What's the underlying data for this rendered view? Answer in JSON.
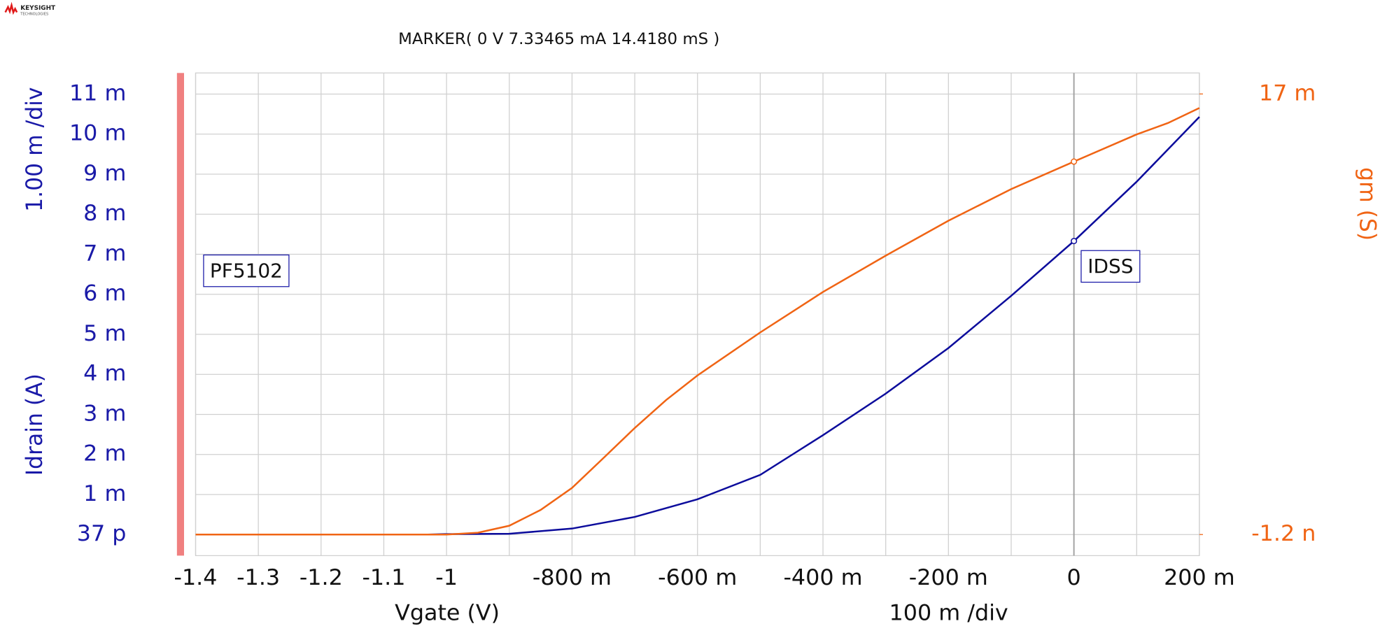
{
  "logo": {
    "brand": "KEYSIGHT",
    "sub": "TECHNOLOGIES"
  },
  "chart_data": {
    "type": "line",
    "marker_readout": "MARKER(  0 V   7.33465 mA  14.4180 mS )",
    "annotations": [
      "PF5102",
      "IDSS"
    ],
    "xlabel": "Vgate (V)",
    "xscale_label": "100 m /div",
    "ylabel": "Idrain (A)",
    "yscale_label": "1.00 m /div",
    "y2label": "gm (S)",
    "xlim": [
      -1.4,
      0.2
    ],
    "xticks": [
      -1.4,
      -1.3,
      -1.2,
      -1.1,
      -1,
      {
        "value": -0.8,
        "label": "-800 m"
      },
      {
        "value": -0.6,
        "label": "-600 m"
      },
      {
        "value": -0.4,
        "label": "-400 m"
      },
      {
        "value": -0.2,
        "label": "-200 m"
      },
      0,
      {
        "value": 0.2,
        "label": "200 m"
      }
    ],
    "xminor": [
      -0.9,
      -0.7,
      -0.5,
      -0.3,
      -0.1,
      0.1
    ],
    "ylim": [
      -0.000527,
      0.011527
    ],
    "yticks": [
      {
        "value": 3.7e-11,
        "label": "37 p"
      },
      {
        "value": 0.001,
        "label": "1 m"
      },
      {
        "value": 0.002,
        "label": "2 m"
      },
      {
        "value": 0.003,
        "label": "3 m"
      },
      {
        "value": 0.004,
        "label": "4 m"
      },
      {
        "value": 0.005,
        "label": "5 m"
      },
      {
        "value": 0.006,
        "label": "6 m"
      },
      {
        "value": 0.007,
        "label": "7 m"
      },
      {
        "value": 0.008,
        "label": "8 m"
      },
      {
        "value": 0.009,
        "label": "9 m"
      },
      {
        "value": 0.01,
        "label": "10 m"
      },
      {
        "value": 0.011,
        "label": "11 m"
      }
    ],
    "y2lim": [
      -0.000814,
      0.01781
    ],
    "y2ticks": [
      {
        "value": -1.2e-09,
        "label": "-1.2 n"
      },
      {
        "value": 0.017,
        "label": "17 m"
      }
    ],
    "marker_x": 0,
    "grid": true,
    "series": [
      {
        "color": "#0c0c9c",
        "x": [
          -1.03,
          -1.0,
          -0.9,
          -0.8,
          -0.7,
          -0.6,
          -0.5,
          -0.4,
          -0.3,
          -0.2,
          -0.1,
          0,
          0.1,
          0.2
        ],
        "values": [
          0,
          1e-05,
          2e-05,
          0.00015,
          0.00044,
          0.00088,
          0.00149,
          0.00248,
          0.00352,
          0.00466,
          0.00596,
          0.00733,
          0.00881,
          0.01043
        ]
      },
      {
        "color": "#f06414",
        "axis": "y2",
        "x": [
          -1.4,
          -1.2,
          -1.0,
          -0.95,
          -0.9,
          -0.85,
          -0.8,
          -0.75,
          -0.7,
          -0.65,
          -0.6,
          -0.5,
          -0.4,
          -0.3,
          -0.2,
          -0.1,
          0,
          0.1,
          0.15,
          0.2
        ],
        "values": [
          0,
          0,
          0,
          7e-05,
          0.00034,
          0.00095,
          0.0018,
          0.00295,
          0.00411,
          0.00519,
          0.00614,
          0.0078,
          0.00936,
          0.01076,
          0.01211,
          0.01333,
          0.01439,
          0.01544,
          0.01588,
          0.01646
        ]
      }
    ]
  }
}
